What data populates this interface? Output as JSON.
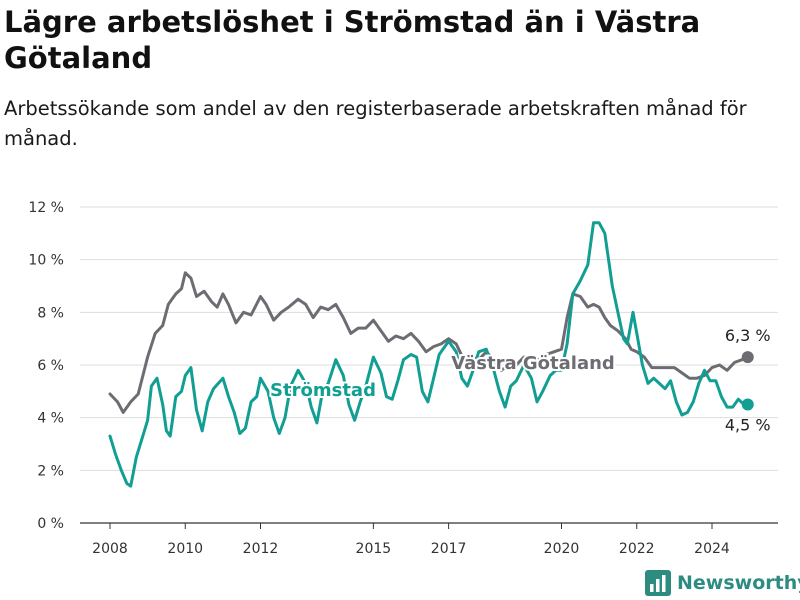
{
  "title": "Lägre arbetslöshet i Strömstad än i Västra Götaland",
  "subtitle": "Arbetssökande som andel av den registerbaserade arbetskraften månad för månad.",
  "brand": {
    "name": "Newsworthy",
    "icon": "bar-chart-logo-icon"
  },
  "chart_data": {
    "type": "line",
    "title": "Lägre arbetslöshet i Strömstad än i Västra Götaland",
    "subtitle": "Arbetssökande som andel av den registerbaserade arbetskraften månad för månad.",
    "xlabel": "",
    "ylabel": "",
    "ylim": [
      0,
      12
    ],
    "xlim": [
      2007.5,
      2025.6
    ],
    "yticks": [
      0,
      2,
      4,
      6,
      8,
      10,
      12
    ],
    "ytick_labels": [
      "0 %",
      "2 %",
      "4 %",
      "6 %",
      "8 %",
      "10 %",
      "12 %"
    ],
    "xticks": [
      2008,
      2010,
      2012,
      2015,
      2017,
      2020,
      2022,
      2024
    ],
    "xtick_labels": [
      "2008",
      "2010",
      "2012",
      "2015",
      "2017",
      "2020",
      "2022",
      "2024"
    ],
    "grid": "horizontal",
    "series": [
      {
        "name": "Västra Götaland",
        "color": "#6e6c73",
        "end_label": "6,3 %",
        "points": [
          [
            2008.0,
            4.9
          ],
          [
            2008.2,
            4.6
          ],
          [
            2008.35,
            4.2
          ],
          [
            2008.55,
            4.6
          ],
          [
            2008.75,
            4.9
          ],
          [
            2009.0,
            6.3
          ],
          [
            2009.2,
            7.2
          ],
          [
            2009.4,
            7.5
          ],
          [
            2009.55,
            8.3
          ],
          [
            2009.75,
            8.7
          ],
          [
            2009.9,
            8.9
          ],
          [
            2010.0,
            9.5
          ],
          [
            2010.15,
            9.3
          ],
          [
            2010.3,
            8.6
          ],
          [
            2010.5,
            8.8
          ],
          [
            2010.7,
            8.4
          ],
          [
            2010.85,
            8.2
          ],
          [
            2011.0,
            8.7
          ],
          [
            2011.15,
            8.3
          ],
          [
            2011.35,
            7.6
          ],
          [
            2011.55,
            8.0
          ],
          [
            2011.75,
            7.9
          ],
          [
            2012.0,
            8.6
          ],
          [
            2012.15,
            8.3
          ],
          [
            2012.35,
            7.7
          ],
          [
            2012.55,
            8.0
          ],
          [
            2012.75,
            8.2
          ],
          [
            2013.0,
            8.5
          ],
          [
            2013.2,
            8.3
          ],
          [
            2013.4,
            7.8
          ],
          [
            2013.6,
            8.2
          ],
          [
            2013.8,
            8.1
          ],
          [
            2014.0,
            8.3
          ],
          [
            2014.2,
            7.8
          ],
          [
            2014.4,
            7.2
          ],
          [
            2014.6,
            7.4
          ],
          [
            2014.8,
            7.4
          ],
          [
            2015.0,
            7.7
          ],
          [
            2015.2,
            7.3
          ],
          [
            2015.4,
            6.9
          ],
          [
            2015.6,
            7.1
          ],
          [
            2015.8,
            7.0
          ],
          [
            2016.0,
            7.2
          ],
          [
            2016.2,
            6.9
          ],
          [
            2016.4,
            6.5
          ],
          [
            2016.6,
            6.7
          ],
          [
            2016.8,
            6.8
          ],
          [
            2017.0,
            7.0
          ],
          [
            2017.2,
            6.8
          ],
          [
            2017.4,
            6.2
          ],
          [
            2017.6,
            6.3
          ],
          [
            2017.8,
            6.2
          ],
          [
            2018.0,
            6.5
          ],
          [
            2018.2,
            6.2
          ],
          [
            2018.4,
            5.8
          ],
          [
            2018.6,
            6.0
          ],
          [
            2018.8,
            6.0
          ],
          [
            2019.0,
            6.3
          ],
          [
            2019.2,
            6.2
          ],
          [
            2019.4,
            6.2
          ],
          [
            2019.6,
            6.4
          ],
          [
            2019.8,
            6.5
          ],
          [
            2020.0,
            6.6
          ],
          [
            2020.15,
            7.8
          ],
          [
            2020.3,
            8.7
          ],
          [
            2020.5,
            8.6
          ],
          [
            2020.7,
            8.2
          ],
          [
            2020.85,
            8.3
          ],
          [
            2021.0,
            8.2
          ],
          [
            2021.15,
            7.8
          ],
          [
            2021.3,
            7.5
          ],
          [
            2021.5,
            7.3
          ],
          [
            2021.7,
            7.0
          ],
          [
            2021.85,
            6.6
          ],
          [
            2022.0,
            6.5
          ],
          [
            2022.2,
            6.3
          ],
          [
            2022.4,
            5.9
          ],
          [
            2022.6,
            5.9
          ],
          [
            2022.8,
            5.9
          ],
          [
            2023.0,
            5.9
          ],
          [
            2023.2,
            5.7
          ],
          [
            2023.4,
            5.5
          ],
          [
            2023.6,
            5.5
          ],
          [
            2023.8,
            5.6
          ],
          [
            2024.0,
            5.9
          ],
          [
            2024.2,
            6.0
          ],
          [
            2024.4,
            5.8
          ],
          [
            2024.6,
            6.1
          ],
          [
            2024.8,
            6.2
          ],
          [
            2024.95,
            6.3
          ]
        ]
      },
      {
        "name": "Strömstad",
        "color": "#119e93",
        "end_label": "4,5 %",
        "points": [
          [
            2008.0,
            3.3
          ],
          [
            2008.15,
            2.6
          ],
          [
            2008.3,
            2.0
          ],
          [
            2008.45,
            1.5
          ],
          [
            2008.55,
            1.4
          ],
          [
            2008.7,
            2.5
          ],
          [
            2008.85,
            3.2
          ],
          [
            2009.0,
            3.9
          ],
          [
            2009.1,
            5.2
          ],
          [
            2009.25,
            5.5
          ],
          [
            2009.4,
            4.5
          ],
          [
            2009.5,
            3.5
          ],
          [
            2009.6,
            3.3
          ],
          [
            2009.75,
            4.8
          ],
          [
            2009.9,
            5.0
          ],
          [
            2010.0,
            5.6
          ],
          [
            2010.15,
            5.9
          ],
          [
            2010.3,
            4.3
          ],
          [
            2010.45,
            3.5
          ],
          [
            2010.6,
            4.6
          ],
          [
            2010.75,
            5.1
          ],
          [
            2011.0,
            5.5
          ],
          [
            2011.15,
            4.8
          ],
          [
            2011.3,
            4.2
          ],
          [
            2011.45,
            3.4
          ],
          [
            2011.6,
            3.6
          ],
          [
            2011.75,
            4.6
          ],
          [
            2011.9,
            4.8
          ],
          [
            2012.0,
            5.5
          ],
          [
            2012.2,
            5.0
          ],
          [
            2012.35,
            4.0
          ],
          [
            2012.5,
            3.4
          ],
          [
            2012.65,
            4.0
          ],
          [
            2012.8,
            5.2
          ],
          [
            2013.0,
            5.8
          ],
          [
            2013.2,
            5.3
          ],
          [
            2013.35,
            4.4
          ],
          [
            2013.5,
            3.8
          ],
          [
            2013.65,
            5.0
          ],
          [
            2013.8,
            5.3
          ],
          [
            2014.0,
            6.2
          ],
          [
            2014.2,
            5.6
          ],
          [
            2014.35,
            4.5
          ],
          [
            2014.5,
            3.9
          ],
          [
            2014.65,
            4.6
          ],
          [
            2014.8,
            5.2
          ],
          [
            2015.0,
            6.3
          ],
          [
            2015.2,
            5.7
          ],
          [
            2015.35,
            4.8
          ],
          [
            2015.5,
            4.7
          ],
          [
            2015.65,
            5.4
          ],
          [
            2015.8,
            6.2
          ],
          [
            2016.0,
            6.4
          ],
          [
            2016.15,
            6.3
          ],
          [
            2016.3,
            5.0
          ],
          [
            2016.45,
            4.6
          ],
          [
            2016.6,
            5.5
          ],
          [
            2016.75,
            6.4
          ],
          [
            2017.0,
            6.9
          ],
          [
            2017.2,
            6.5
          ],
          [
            2017.35,
            5.5
          ],
          [
            2017.5,
            5.2
          ],
          [
            2017.65,
            5.8
          ],
          [
            2017.8,
            6.5
          ],
          [
            2018.0,
            6.6
          ],
          [
            2018.2,
            5.8
          ],
          [
            2018.35,
            5.0
          ],
          [
            2018.5,
            4.4
          ],
          [
            2018.65,
            5.2
          ],
          [
            2018.8,
            5.4
          ],
          [
            2019.0,
            6.0
          ],
          [
            2019.2,
            5.5
          ],
          [
            2019.35,
            4.6
          ],
          [
            2019.5,
            5.0
          ],
          [
            2019.7,
            5.6
          ],
          [
            2019.85,
            5.8
          ],
          [
            2020.0,
            5.8
          ],
          [
            2020.15,
            6.8
          ],
          [
            2020.3,
            8.7
          ],
          [
            2020.5,
            9.2
          ],
          [
            2020.7,
            9.8
          ],
          [
            2020.85,
            11.4
          ],
          [
            2021.0,
            11.4
          ],
          [
            2021.15,
            11.0
          ],
          [
            2021.35,
            9.0
          ],
          [
            2021.5,
            8.0
          ],
          [
            2021.65,
            7.0
          ],
          [
            2021.75,
            6.8
          ],
          [
            2021.9,
            8.0
          ],
          [
            2022.0,
            7.2
          ],
          [
            2022.15,
            6.0
          ],
          [
            2022.3,
            5.3
          ],
          [
            2022.45,
            5.5
          ],
          [
            2022.6,
            5.3
          ],
          [
            2022.75,
            5.1
          ],
          [
            2022.9,
            5.4
          ],
          [
            2023.05,
            4.6
          ],
          [
            2023.2,
            4.1
          ],
          [
            2023.35,
            4.2
          ],
          [
            2023.5,
            4.6
          ],
          [
            2023.65,
            5.3
          ],
          [
            2023.8,
            5.8
          ],
          [
            2023.95,
            5.4
          ],
          [
            2024.1,
            5.4
          ],
          [
            2024.25,
            4.8
          ],
          [
            2024.4,
            4.4
          ],
          [
            2024.55,
            4.4
          ],
          [
            2024.7,
            4.7
          ],
          [
            2024.85,
            4.5
          ],
          [
            2024.95,
            4.5
          ]
        ]
      }
    ]
  }
}
